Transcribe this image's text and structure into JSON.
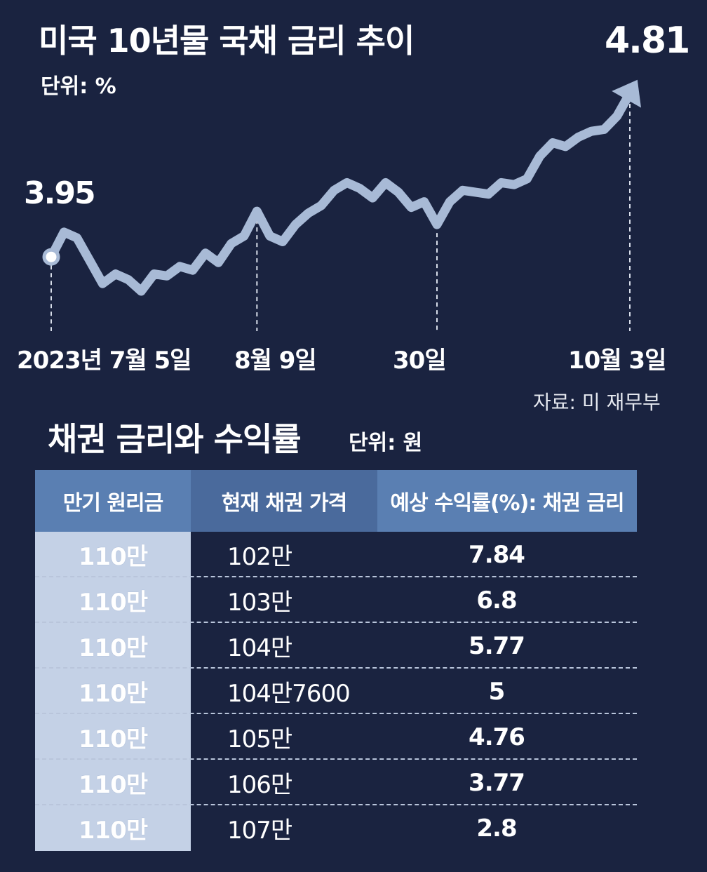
{
  "chart": {
    "title": "미국 10년물 국채 금리 추이",
    "unit": "단위: %",
    "start_value": "3.95",
    "end_value": "4.81",
    "date_labels": [
      "2023년 7월 5일",
      "8월 9일",
      "30일",
      "10월 3일"
    ],
    "source": "자료: 미 재무부",
    "colors": {
      "background": "#1a2340",
      "line": "#a8bad6",
      "text": "#ffffff"
    },
    "icons": {
      "end_marker": "arrow-icon",
      "start_marker": "start-point-icon"
    }
  },
  "chart_data": {
    "type": "line",
    "title": "미국 10년물 국채 금리 추이",
    "unit": "%",
    "series": [
      {
        "values": [
          3.95,
          4.08,
          4.05,
          3.93,
          3.81,
          3.86,
          3.83,
          3.77,
          3.86,
          3.85,
          3.9,
          3.88,
          3.97,
          3.92,
          4.02,
          4.06,
          4.19,
          4.06,
          4.03,
          4.12,
          4.18,
          4.22,
          4.3,
          4.34,
          4.31,
          4.26,
          4.34,
          4.29,
          4.21,
          4.24,
          4.12,
          4.24,
          4.3,
          4.29,
          4.28,
          4.34,
          4.33,
          4.36,
          4.48,
          4.55,
          4.53,
          4.58,
          4.61,
          4.62,
          4.69,
          4.81
        ]
      }
    ],
    "labeled_points": [
      {
        "date": "2023년 7월 5일",
        "value": 3.95
      },
      {
        "date": "8월 9일"
      },
      {
        "date": "30일"
      },
      {
        "date": "10월 3일",
        "value": 4.81
      }
    ]
  },
  "table": {
    "title": "채권 금리와 수익률",
    "unit": "단위: 원",
    "headers": [
      "만기 원리금",
      "현재 채권 가격",
      "예상 수익률(%): 채권 금리"
    ],
    "rows": [
      [
        "110만",
        "102만",
        "7.84"
      ],
      [
        "110만",
        "103만",
        "6.8"
      ],
      [
        "110만",
        "104만",
        "5.77"
      ],
      [
        "110만",
        "104만7600",
        "5"
      ],
      [
        "110만",
        "105만",
        "4.76"
      ],
      [
        "110만",
        "106만",
        "3.77"
      ],
      [
        "110만",
        "107만",
        "2.8"
      ]
    ]
  }
}
